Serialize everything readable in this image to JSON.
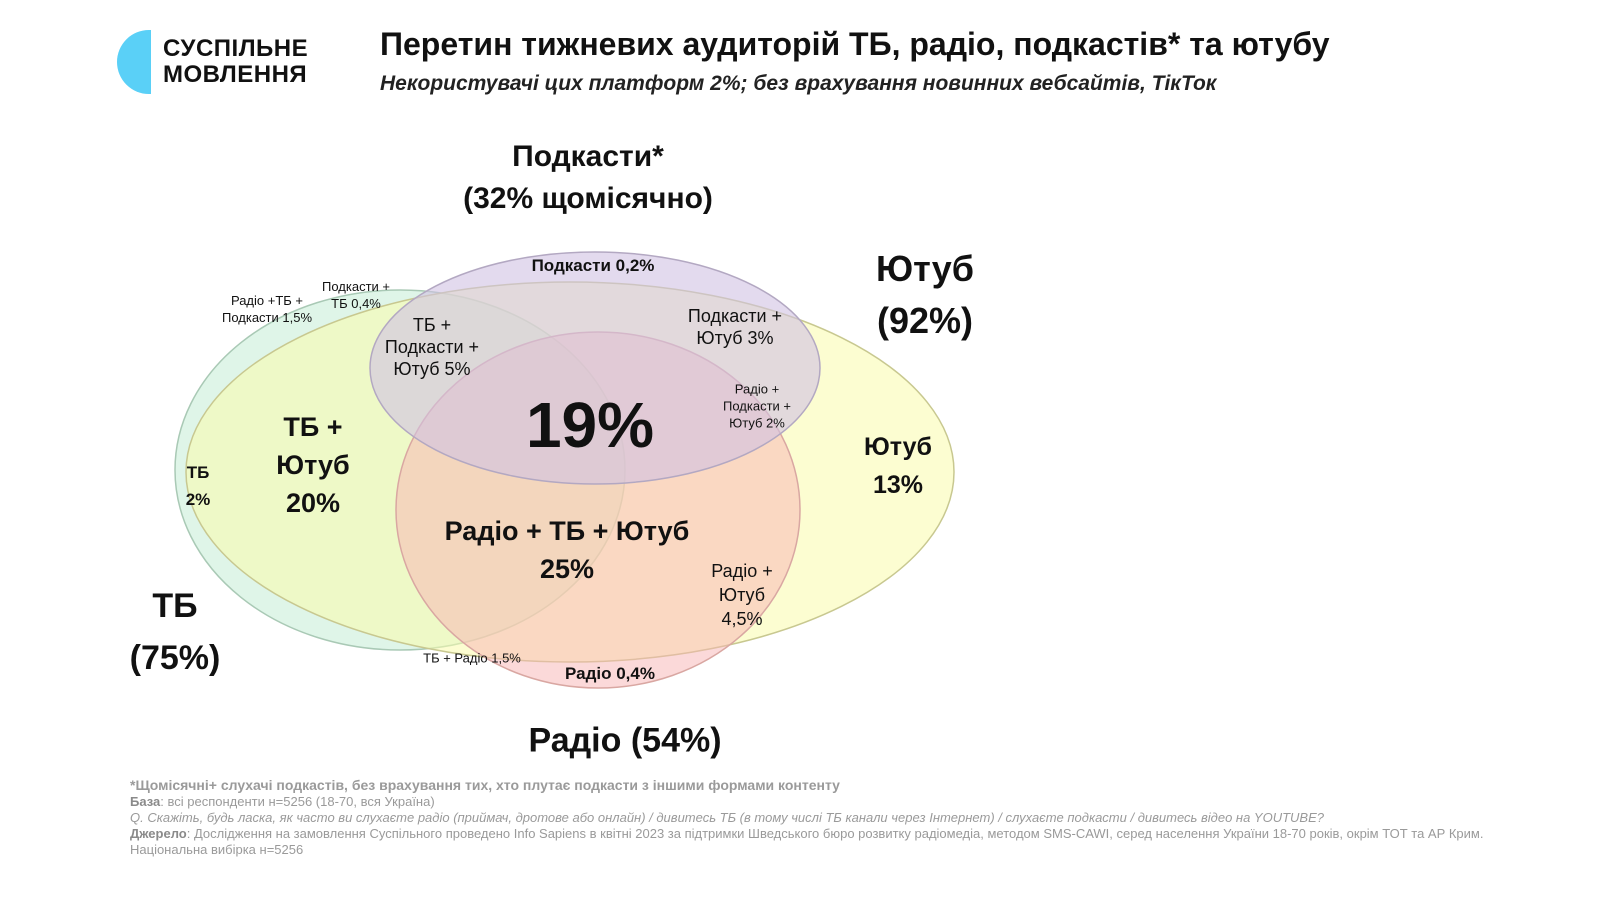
{
  "logo": {
    "line1": "СУСПІЛЬНЕ",
    "line2": "МОВЛЕННЯ",
    "color": "#5ad0f7"
  },
  "header": {
    "title": "Перетин тижневих аудиторій ТБ, радіо, подкастів* та ютубу",
    "subtitle": "Некористувачі цих платформ 2%; без врахування новинних вебсайтів, ТікТок"
  },
  "sets": {
    "tv": {
      "line1": "ТБ",
      "line2": "(75%)",
      "color": "#c9efd8"
    },
    "youtube": {
      "line1": "Ютуб",
      "line2": "(92%)",
      "color": "#fbfdc0"
    },
    "podcasts": {
      "line1": "Подкасти*",
      "line2": "(32% щомісячно)",
      "color": "#ddd0ec"
    },
    "radio": {
      "label": "Радіо (54%)",
      "color": "#f9bfc0"
    }
  },
  "regions": {
    "all_four": "19%",
    "radio_tv_youtube": [
      "Радіо + ТБ + Ютуб",
      "25%"
    ],
    "tv_youtube": [
      "ТБ  +",
      "Ютуб",
      "20%"
    ],
    "youtube_only": [
      "Ютуб",
      "13%"
    ],
    "tv_only": [
      "ТБ",
      "2%"
    ],
    "tv_podcasts_youtube": [
      "ТБ +",
      "Подкасти +",
      "Ютуб 5%"
    ],
    "podcasts_youtube": [
      "Подкасти +",
      "Ютуб 3%"
    ],
    "radio_podcasts_youtube": [
      "Радіо +",
      "Подкасти +",
      "Ютуб 2%"
    ],
    "radio_youtube": [
      "Радіо +",
      "Ютуб",
      "4,5%"
    ],
    "podcasts_only": "Подкасти 0,2%",
    "radio_only": "Радіо 0,4%",
    "tv_radio": "ТБ + Радіо 1,5%",
    "radio_tv_podcasts": [
      "Радіо +ТБ +",
      "Подкасти 1,5%"
    ],
    "podcasts_tv": [
      "Подкасти +",
      "ТБ 0,4%"
    ]
  },
  "footer": {
    "note": "*Щомісячні+ слухачі подкастів, без врахування тих, хто плутає подкасти з іншими формами контенту",
    "base_label": "База",
    "base_text": ": всі респонденти н=5256 (18-70, вся Україна)",
    "question": "Q. Скажіть, будь ласка, як часто ви слухаєте радіо (приймач, дротове або онлайн) / дивитесь ТБ (в тому числі ТБ канали через Інтернет) / слухаєте подкасти /  дивитесь відео на YOUTUBE?",
    "source_label": "Джерело",
    "source_text": ": Дослідження на замовлення Суспільного проведено Info Sapiens в квітні 2023 за підтримки Шведського бюро розвитку радіомедіа, методом SMS-CAWI, серед населення України 18-70 років, окрім ТОТ та АР Крим.",
    "sample": "Національна вибірка н=5256"
  }
}
